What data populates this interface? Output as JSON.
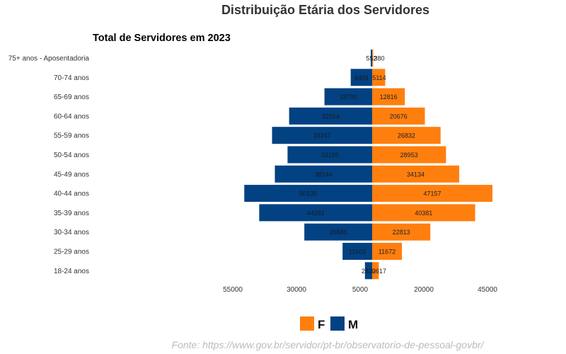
{
  "chart_data": {
    "type": "bar",
    "orientation": "horizontal-diverging",
    "title": "Distribuição Etária dos Servidores",
    "subtitle": "Total de Servidores em 2023",
    "categories": [
      "75+ anos - Aposentadoria",
      "70-74 anos",
      "65-69 anos",
      "60-64 anos",
      "55-59 anos",
      "50-54 anos",
      "45-49 anos",
      "40-44 anos",
      "35-39 anos",
      "30-34 anos",
      "25-29 anos",
      "18-24 anos"
    ],
    "series": [
      {
        "name": "F",
        "color": "#FF7F0E",
        "side": "right",
        "values": [
          380,
          5114,
          12816,
          20676,
          26832,
          28953,
          34134,
          47157,
          40381,
          22813,
          11672,
          2617
        ],
        "labels": [
          "380",
          "5114",
          "12816",
          "20676",
          "26832",
          "28953",
          "34134",
          "47157",
          "40381",
          "22813",
          "11672",
          "2617"
        ]
      },
      {
        "name": "M",
        "color": "#024283",
        "side": "left",
        "values": [
          552,
          8404,
          18700,
          32554,
          39247,
          33169,
          38144,
          50135,
          44281,
          26585,
          11603,
          2820
        ],
        "labels": [
          "552",
          "8404",
          "18700",
          "32554",
          "39247",
          "33169",
          "38144",
          "50135",
          "44281",
          "26585",
          "11603",
          "2820"
        ]
      }
    ],
    "x_ticks": [
      "55000",
      "30000",
      "5000",
      "20000",
      "45000"
    ],
    "legend_position": "bottom",
    "grid": false
  },
  "legend": {
    "items": [
      {
        "label": "F",
        "color": "#FF7F0E"
      },
      {
        "label": "M",
        "color": "#024283"
      }
    ]
  },
  "source_text": "Fonte: https://www.gov.br/servidor/pt-br/observatorio-de-pessoal-govbr/"
}
